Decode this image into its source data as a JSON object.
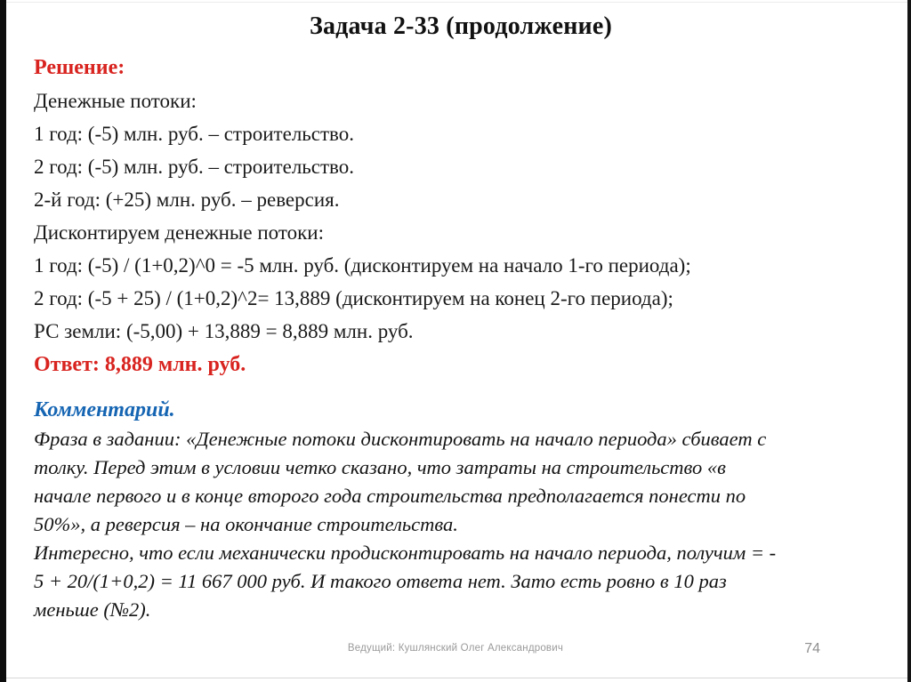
{
  "slide": {
    "title": "Задача 2-33 (продолжение)",
    "solution": {
      "heading": "Решение:",
      "lines": [
        "Денежные потоки:",
        "1 год: (-5) млн. руб. – строительство.",
        "2 год: (-5) млн. руб. – строительство.",
        "2-й год: (+25) млн. руб. – реверсия.",
        "Дисконтируем денежные потоки:",
        "1 год: (-5) / (1+0,2)^0 = -5 млн. руб. (дисконтируем на начало 1-го периода);",
        "2 год: (-5 + 25) / (1+0,2)^2= 13,889 (дисконтируем на конец 2-го периода);",
        "РС земли: (-5,00) + 13,889 = 8,889 млн. руб."
      ],
      "answer": "Ответ: 8,889 млн. руб."
    },
    "commentary": {
      "heading": "Комментарий.",
      "lines": [
        "Фраза в задании: «Денежные потоки дисконтировать на начало периода» сбивает с",
        "толку. Перед этим в условии четко сказано, что затраты на строительство «в",
        "начале первого и в конце второго года строительства предполагается понести по",
        "50%», а реверсия – на окончание строительства.",
        "Интересно, что если механически продисконтировать на начало периода, получим = -",
        "5 + 20/(1+0,2) = 11 667 000 руб. И такого ответа нет. Зато есть ровно в 10 раз",
        "меньше (№2)."
      ]
    },
    "footer": {
      "presenter": "Ведущий: Кушлянский Олег Александрович",
      "page_number": "74"
    },
    "colors": {
      "accent_red": "#d8231f",
      "accent_blue": "#1565b3",
      "footer_gray": "#9a9a9a"
    }
  }
}
